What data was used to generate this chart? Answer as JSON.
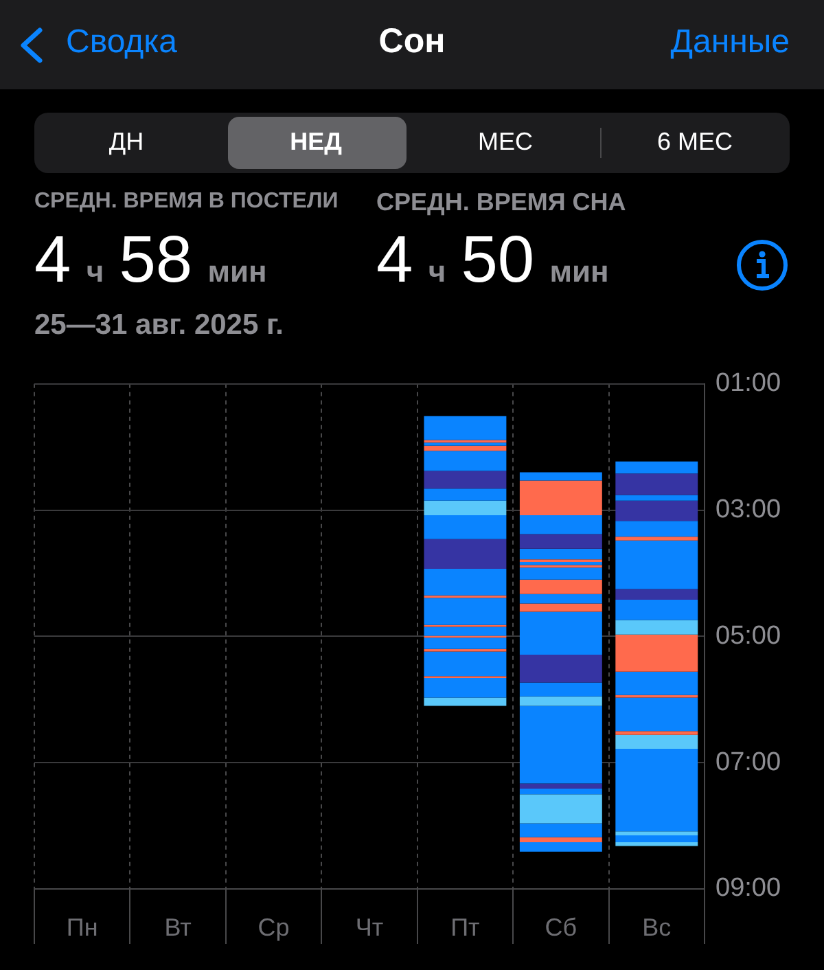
{
  "chart_data": {
    "type": "bar",
    "title": "Сон",
    "subtitle": "25—31 авг. 2025 г.",
    "annotations": [
      "Сводка",
      "Данные",
      "ДН",
      "НЕД",
      "МЕС",
      "6 МЕС",
      "СРЕДН. ВРЕМЯ В ПОСТЕЛИ",
      "4 ч 58 мин",
      "СРЕДН. ВРЕМЯ СНА",
      "4 ч 50 мин"
    ],
    "categories": [
      "Пн",
      "Вт",
      "Ср",
      "Чт",
      "Пт",
      "Сб",
      "Вс"
    ],
    "series": [
      {
        "base": [
          null,
          null,
          null,
          null,
          1.51,
          2.4,
          2.23
        ],
        "values": [
          null,
          null,
          null,
          null,
          0.38,
          0.13,
          0.19
        ],
        "colors": [
          null,
          null,
          null,
          null,
          "#0a84ff",
          "#0a84ff",
          "#0a84ff"
        ]
      },
      {
        "base": [
          null,
          null,
          null,
          null,
          1.89,
          2.53,
          2.42
        ],
        "values": [
          null,
          null,
          null,
          null,
          0.04,
          0.55,
          0.34
        ],
        "colors": [
          null,
          null,
          null,
          null,
          "#ff6a4d",
          "#ff6a4d",
          "#3634a3"
        ]
      },
      {
        "base": [
          null,
          null,
          null,
          null,
          1.93,
          3.08,
          2.76
        ],
        "values": [
          null,
          null,
          null,
          null,
          0.05,
          0.3,
          0.09
        ],
        "colors": [
          null,
          null,
          null,
          null,
          "#0a84ff",
          "#0a84ff",
          "#0a84ff"
        ]
      },
      {
        "base": [
          null,
          null,
          null,
          null,
          1.98,
          3.38,
          2.85
        ],
        "values": [
          null,
          null,
          null,
          null,
          0.08,
          0.23,
          0.32
        ],
        "colors": [
          null,
          null,
          null,
          null,
          "#ff6a4d",
          "#3634a3",
          "#3634a3"
        ]
      },
      {
        "base": [
          null,
          null,
          null,
          null,
          2.06,
          3.61,
          3.17
        ],
        "values": [
          null,
          null,
          null,
          null,
          0.32,
          0.17,
          0.25
        ],
        "colors": [
          null,
          null,
          null,
          null,
          "#0a84ff",
          "#0a84ff",
          "#0a84ff"
        ]
      },
      {
        "base": [
          null,
          null,
          null,
          null,
          2.38,
          3.78,
          3.42
        ],
        "values": [
          null,
          null,
          null,
          null,
          0.28,
          0.04,
          0.06
        ],
        "colors": [
          null,
          null,
          null,
          null,
          "#3634a3",
          "#ff6a4d",
          "#ff6a4d"
        ]
      },
      {
        "base": [
          null,
          null,
          null,
          null,
          2.66,
          3.82,
          3.48
        ],
        "values": [
          null,
          null,
          null,
          null,
          0.19,
          0.05,
          0.77
        ],
        "colors": [
          null,
          null,
          null,
          null,
          "#0a84ff",
          "#0a84ff",
          "#0a84ff"
        ]
      },
      {
        "base": [
          null,
          null,
          null,
          null,
          2.85,
          3.87,
          4.25
        ],
        "values": [
          null,
          null,
          null,
          null,
          0.23,
          0.04,
          0.17
        ],
        "colors": [
          null,
          null,
          null,
          null,
          "#5ac8fa",
          "#ff6a4d",
          "#3634a3"
        ]
      },
      {
        "base": [
          null,
          null,
          null,
          null,
          3.08,
          3.91,
          4.42
        ],
        "values": [
          null,
          null,
          null,
          null,
          0.38,
          0.19,
          0.32
        ],
        "colors": [
          null,
          null,
          null,
          null,
          "#0a84ff",
          "#0a84ff",
          "#0a84ff"
        ]
      },
      {
        "base": [
          null,
          null,
          null,
          null,
          3.46,
          4.1,
          4.74
        ],
        "values": [
          null,
          null,
          null,
          null,
          0.47,
          0.23,
          0.23
        ],
        "colors": [
          null,
          null,
          null,
          null,
          "#3634a3",
          "#ff6a4d",
          "#5ac8fa"
        ]
      },
      {
        "base": [
          null,
          null,
          null,
          null,
          3.93,
          4.33,
          4.97
        ],
        "values": [
          null,
          null,
          null,
          null,
          0.42,
          0.15,
          0.59
        ],
        "colors": [
          null,
          null,
          null,
          null,
          "#0a84ff",
          "#0a84ff",
          "#ff6a4d"
        ]
      },
      {
        "base": [
          null,
          null,
          null,
          null,
          4.35,
          4.48,
          5.56
        ],
        "values": [
          null,
          null,
          null,
          null,
          0.04,
          0.13,
          0.37
        ],
        "colors": [
          null,
          null,
          null,
          null,
          "#ff6a4d",
          "#ff6a4d",
          "#0a84ff"
        ]
      },
      {
        "base": [
          null,
          null,
          null,
          null,
          4.39,
          4.61,
          5.93
        ],
        "values": [
          null,
          null,
          null,
          null,
          0.43,
          0.68,
          0.04
        ],
        "colors": [
          null,
          null,
          null,
          null,
          "#0a84ff",
          "#0a84ff",
          "#ff6a4d"
        ]
      },
      {
        "base": [
          null,
          null,
          null,
          null,
          4.82,
          5.29,
          5.97
        ],
        "values": [
          null,
          null,
          null,
          null,
          0.03,
          0.44,
          0.53
        ],
        "colors": [
          null,
          null,
          null,
          null,
          "#ff6a4d",
          "#3634a3",
          "#0a84ff"
        ]
      },
      {
        "base": [
          null,
          null,
          null,
          null,
          4.85,
          5.73,
          6.5
        ],
        "values": [
          null,
          null,
          null,
          null,
          0.14,
          0.22,
          0.06
        ],
        "colors": [
          null,
          null,
          null,
          null,
          "#0a84ff",
          "#0a84ff",
          "#ff6a4d"
        ]
      },
      {
        "base": [
          null,
          null,
          null,
          null,
          4.99,
          5.95,
          6.56
        ],
        "values": [
          null,
          null,
          null,
          null,
          0.03,
          0.15,
          0.22
        ],
        "colors": [
          null,
          null,
          null,
          null,
          "#ff6a4d",
          "#5ac8fa",
          "#5ac8fa"
        ]
      },
      {
        "base": [
          null,
          null,
          null,
          null,
          5.02,
          6.1,
          6.78
        ],
        "values": [
          null,
          null,
          null,
          null,
          0.18,
          1.23,
          1.31
        ],
        "colors": [
          null,
          null,
          null,
          null,
          "#0a84ff",
          "#0a84ff",
          "#0a84ff"
        ]
      },
      {
        "base": [
          null,
          null,
          null,
          null,
          5.2,
          7.33,
          8.09
        ],
        "values": [
          null,
          null,
          null,
          null,
          0.04,
          0.08,
          0.06
        ],
        "colors": [
          null,
          null,
          null,
          null,
          "#ff6a4d",
          "#3634a3",
          "#5ac8fa"
        ]
      },
      {
        "base": [
          null,
          null,
          null,
          null,
          5.24,
          7.41,
          8.15
        ],
        "values": [
          null,
          null,
          null,
          null,
          0.39,
          0.09,
          0.11
        ],
        "colors": [
          null,
          null,
          null,
          null,
          "#0a84ff",
          "#0a84ff",
          "#0a84ff"
        ]
      },
      {
        "base": [
          null,
          null,
          null,
          null,
          5.63,
          7.5,
          8.26
        ],
        "values": [
          null,
          null,
          null,
          null,
          0.03,
          0.46,
          0.06
        ],
        "colors": [
          null,
          null,
          null,
          null,
          "#ff6a4d",
          "#5ac8fa",
          "#5ac8fa"
        ]
      },
      {
        "base": [
          null,
          null,
          null,
          null,
          5.66,
          7.96,
          null
        ],
        "values": [
          null,
          null,
          null,
          null,
          0.31,
          0.22,
          null
        ],
        "colors": [
          null,
          null,
          null,
          null,
          "#0a84ff",
          "#0a84ff",
          null
        ]
      },
      {
        "base": [
          null,
          null,
          null,
          null,
          5.97,
          8.18,
          null
        ],
        "values": [
          null,
          null,
          null,
          null,
          0.13,
          0.08,
          null
        ],
        "colors": [
          null,
          null,
          null,
          null,
          "#5ac8fa",
          "#ff6a4d",
          null
        ]
      },
      {
        "base": [
          null,
          null,
          null,
          null,
          null,
          8.26,
          null
        ],
        "values": [
          null,
          null,
          null,
          null,
          null,
          0.15,
          null
        ],
        "colors": [
          null,
          null,
          null,
          null,
          null,
          "#0a84ff",
          null
        ]
      }
    ],
    "ylim": [
      9,
      1
    ],
    "yticks": [
      {
        "value": 1,
        "label": "01:00"
      },
      {
        "value": 3,
        "label": "03:00"
      },
      {
        "value": 5,
        "label": "05:00"
      },
      {
        "value": 7,
        "label": "07:00"
      },
      {
        "value": 9,
        "label": "09:00"
      }
    ],
    "grid": true,
    "legend": false
  }
}
